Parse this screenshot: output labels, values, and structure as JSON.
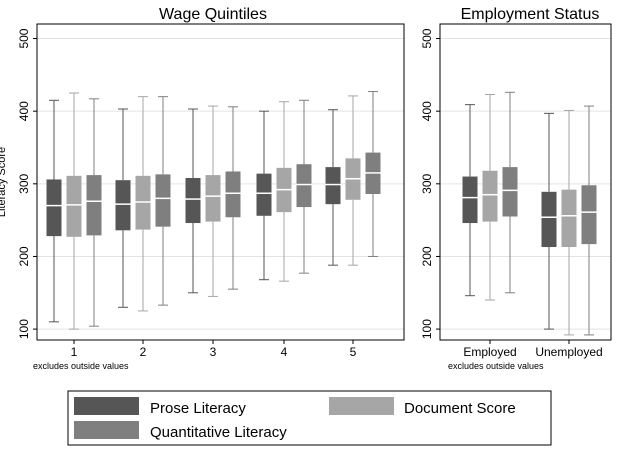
{
  "chart_data": [
    {
      "type": "box",
      "title": "Wage Quintiles",
      "ylabel": "Literacy Score",
      "ylim": [
        85,
        520
      ],
      "yticks": [
        100,
        200,
        300,
        400,
        500
      ],
      "grid": true,
      "note": "excludes outside values",
      "categories": [
        "1",
        "2",
        "3",
        "4",
        "5"
      ],
      "series": [
        {
          "name": "Prose Literacy",
          "boxes": [
            {
              "whisker_low": 110,
              "q1": 228,
              "median": 270,
              "q3": 306,
              "whisker_high": 415
            },
            {
              "whisker_low": 130,
              "q1": 236,
              "median": 272,
              "q3": 305,
              "whisker_high": 403
            },
            {
              "whisker_low": 150,
              "q1": 246,
              "median": 279,
              "q3": 308,
              "whisker_high": 403
            },
            {
              "whisker_low": 168,
              "q1": 256,
              "median": 287,
              "q3": 314,
              "whisker_high": 400
            },
            {
              "whisker_low": 188,
              "q1": 272,
              "median": 299,
              "q3": 323,
              "whisker_high": 402
            }
          ]
        },
        {
          "name": "Document Score",
          "boxes": [
            {
              "whisker_low": 100,
              "q1": 227,
              "median": 271,
              "q3": 311,
              "whisker_high": 425
            },
            {
              "whisker_low": 125,
              "q1": 237,
              "median": 275,
              "q3": 311,
              "whisker_high": 420
            },
            {
              "whisker_low": 145,
              "q1": 248,
              "median": 283,
              "q3": 312,
              "whisker_high": 407
            },
            {
              "whisker_low": 166,
              "q1": 261,
              "median": 292,
              "q3": 322,
              "whisker_high": 413
            },
            {
              "whisker_low": 188,
              "q1": 278,
              "median": 307,
              "q3": 335,
              "whisker_high": 421
            }
          ]
        },
        {
          "name": "Quantitative Literacy",
          "boxes": [
            {
              "whisker_low": 104,
              "q1": 229,
              "median": 276,
              "q3": 312,
              "whisker_high": 417
            },
            {
              "whisker_low": 133,
              "q1": 241,
              "median": 280,
              "q3": 313,
              "whisker_high": 420
            },
            {
              "whisker_low": 155,
              "q1": 254,
              "median": 287,
              "q3": 317,
              "whisker_high": 406
            },
            {
              "whisker_low": 177,
              "q1": 268,
              "median": 299,
              "q3": 327,
              "whisker_high": 415
            },
            {
              "whisker_low": 200,
              "q1": 286,
              "median": 315,
              "q3": 343,
              "whisker_high": 427
            }
          ]
        }
      ]
    },
    {
      "type": "box",
      "title": "Employment Status",
      "ylim": [
        85,
        520
      ],
      "yticks": [
        100,
        200,
        300,
        400,
        500
      ],
      "grid": true,
      "note": "excludes outside values",
      "categories": [
        "Employed",
        "Unemployed"
      ],
      "series": [
        {
          "name": "Prose Literacy",
          "boxes": [
            {
              "whisker_low": 146,
              "q1": 246,
              "median": 281,
              "q3": 310,
              "whisker_high": 409
            },
            {
              "whisker_low": 100,
              "q1": 213,
              "median": 254,
              "q3": 289,
              "whisker_high": 397
            }
          ]
        },
        {
          "name": "Document Score",
          "boxes": [
            {
              "whisker_low": 140,
              "q1": 248,
              "median": 285,
              "q3": 318,
              "whisker_high": 423
            },
            {
              "whisker_low": 92,
              "q1": 213,
              "median": 256,
              "q3": 292,
              "whisker_high": 401
            }
          ]
        },
        {
          "name": "Quantitative Literacy",
          "boxes": [
            {
              "whisker_low": 150,
              "q1": 255,
              "median": 291,
              "q3": 323,
              "whisker_high": 426
            },
            {
              "whisker_low": 92,
              "q1": 217,
              "median": 261,
              "q3": 298,
              "whisker_high": 407
            }
          ]
        }
      ]
    }
  ],
  "legend": {
    "placement": "bottom",
    "items": [
      {
        "label": "Prose Literacy",
        "color": "#565656"
      },
      {
        "label": "Document Score",
        "color": "#a6a6a6"
      },
      {
        "label": "Quantitative Literacy",
        "color": "#7f7f7f"
      }
    ]
  },
  "colors": {
    "series": [
      "#565656",
      "#a6a6a6",
      "#7f7f7f"
    ],
    "grid": "#e3e3e3",
    "frame": "#000000"
  }
}
